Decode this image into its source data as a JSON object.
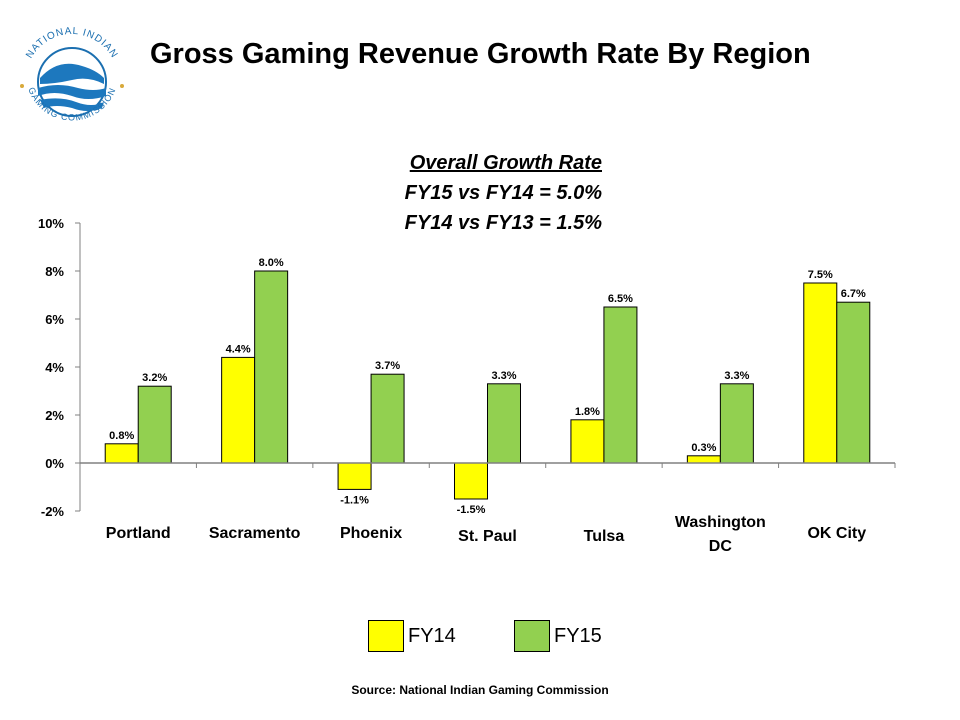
{
  "title": "Gross Gaming Revenue Growth Rate By Region",
  "logo": {
    "text": "NATIONAL INDIAN GAMING COMMISSION",
    "icon": "nigc-seal-icon",
    "colors": {
      "ring": "#1b6fb0",
      "water": "#1d78be"
    }
  },
  "overall": {
    "heading": "Overall Growth Rate",
    "line1": "FY15 vs FY14 = 5.0%",
    "line2": "FY14 vs FY13 = 1.5%"
  },
  "legend": {
    "fy14": "FY14",
    "fy15": "FY15"
  },
  "source": "Source: National Indian Gaming Commission",
  "chart_data": {
    "type": "bar",
    "title": "Gross Gaming Revenue Growth Rate By Region",
    "categories": [
      "Portland",
      "Sacramento",
      "Phoenix",
      "St. Paul",
      "Tulsa",
      "Washington DC",
      "OK City"
    ],
    "series": [
      {
        "name": "FY14",
        "color": "#ffff00",
        "values": [
          0.8,
          4.4,
          -1.1,
          -1.5,
          1.8,
          0.3,
          7.5
        ],
        "labels": [
          "0.8%",
          "4.4%",
          "-1.1%",
          "-1.5%",
          "1.8%",
          "0.3%",
          "7.5%"
        ]
      },
      {
        "name": "FY15",
        "color": "#92d050",
        "values": [
          3.2,
          8.0,
          3.7,
          3.3,
          6.5,
          3.3,
          6.7
        ],
        "labels": [
          "3.2%",
          "8.0%",
          "3.7%",
          "3.3%",
          "6.5%",
          "3.3%",
          "6.7%"
        ]
      }
    ],
    "ylim": [
      -2,
      10
    ],
    "yticks": [
      -2,
      0,
      2,
      4,
      6,
      8,
      10
    ],
    "ytick_labels": [
      "-2%",
      "0%",
      "2%",
      "4%",
      "6%",
      "8%",
      "10%"
    ],
    "grid": false,
    "legend_position": "bottom"
  }
}
